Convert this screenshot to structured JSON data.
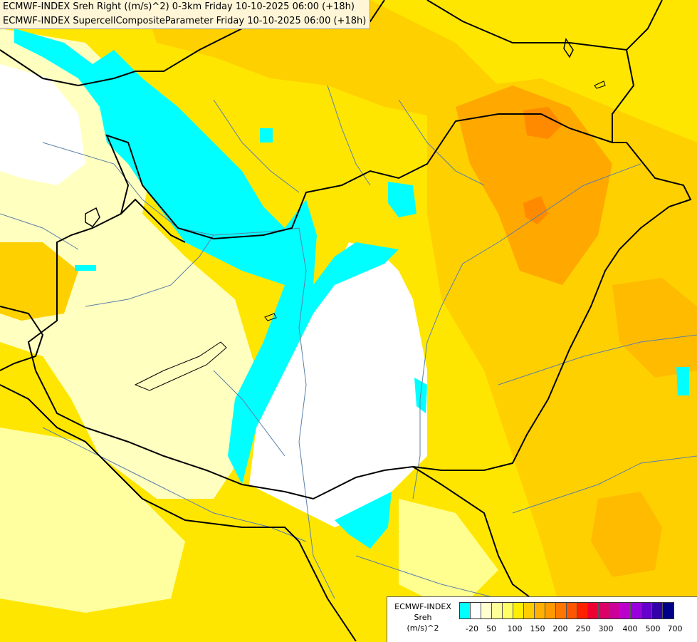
{
  "title": {
    "line1": "ECMWF-INDEX Sreh Right ((m/s)^2) 0-3km Friday 10-10-2025 06:00 (+18h)",
    "line2": "ECMWF-INDEX SupercellCompositeParameter Friday 10-10-2025 06:00 (+18h)"
  },
  "legend": {
    "title_line1": "ECMWF-INDEX",
    "title_line2": "Sreh",
    "title_line3": "(m/s)^2",
    "colors": [
      "#00ffff",
      "#ffffff",
      "#ffffd0",
      "#ffff99",
      "#ffff66",
      "#ffee00",
      "#ffcc00",
      "#ffb000",
      "#ff9900",
      "#ff7700",
      "#ff5500",
      "#ff2200",
      "#ee0033",
      "#dd0066",
      "#cc0099",
      "#bb00cc",
      "#9900dd",
      "#6600cc",
      "#3300aa",
      "#000088"
    ],
    "ticks": [
      "-20",
      "50",
      "100",
      "150",
      "200",
      "250",
      "300",
      "400",
      "500",
      "700"
    ]
  },
  "map_colors": {
    "cyan": "#00ffff",
    "white": "#ffffff",
    "pale": "#ffffc0",
    "yellow": "#ffee00",
    "gold": "#ffd000",
    "orange": "#ffa800",
    "deep_orange": "#ff8a00",
    "border": "#000000",
    "river": "#5a7fa8"
  }
}
